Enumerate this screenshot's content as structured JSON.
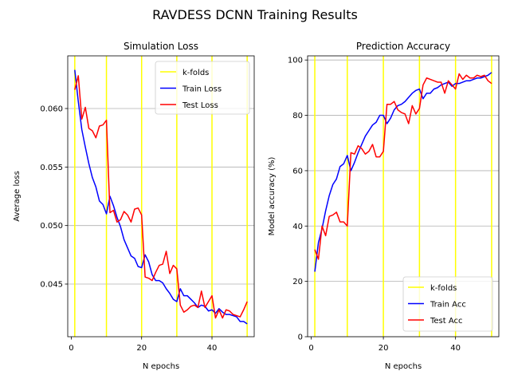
{
  "figure": {
    "suptitle": "RAVDESS DCNN Training Results"
  },
  "chart_data": [
    {
      "type": "line",
      "title": "Simulation Loss",
      "xlabel": "N epochs",
      "ylabel": "Average loss",
      "xlim": [
        -1,
        52
      ],
      "ylim": [
        0.0405,
        0.0645
      ],
      "xticks": [
        0,
        20,
        40
      ],
      "yticks": [
        0.045,
        0.05,
        0.055,
        0.06
      ],
      "ytick_labels": [
        "0.045",
        "0.050",
        "0.055",
        "0.060"
      ],
      "grid": "y",
      "legend_position": "top-right",
      "kfolds": {
        "name": "k-folds",
        "color": "#ffff00",
        "x": [
          1,
          10,
          20,
          30,
          40,
          50
        ]
      },
      "series": [
        {
          "name": "Train Loss",
          "color": "#0000ff",
          "x": [
            1,
            2,
            3,
            4,
            5,
            6,
            7,
            8,
            9,
            10,
            11,
            12,
            13,
            14,
            15,
            16,
            17,
            18,
            19,
            20,
            21,
            22,
            23,
            24,
            25,
            26,
            27,
            28,
            29,
            30,
            31,
            32,
            33,
            34,
            35,
            36,
            37,
            38,
            39,
            40,
            41,
            42,
            43,
            44,
            45,
            46,
            47,
            48,
            49,
            50
          ],
          "values": [
            0.0633,
            0.0606,
            0.0582,
            0.0567,
            0.0553,
            0.0541,
            0.0533,
            0.0521,
            0.0518,
            0.051,
            0.0525,
            0.0517,
            0.0507,
            0.0499,
            0.0488,
            0.0481,
            0.0474,
            0.0472,
            0.0465,
            0.0464,
            0.0475,
            0.0469,
            0.0458,
            0.0453,
            0.0453,
            0.0451,
            0.0446,
            0.0442,
            0.0437,
            0.0435,
            0.0446,
            0.044,
            0.044,
            0.0437,
            0.0434,
            0.043,
            0.0432,
            0.0431,
            0.0427,
            0.0428,
            0.0425,
            0.0429,
            0.0426,
            0.0424,
            0.0424,
            0.0423,
            0.0422,
            0.0418,
            0.0418,
            0.0416
          ]
        },
        {
          "name": "Test Loss",
          "color": "#ff0000",
          "x": [
            1,
            2,
            3,
            4,
            5,
            6,
            7,
            8,
            9,
            10,
            11,
            12,
            13,
            14,
            15,
            16,
            17,
            18,
            19,
            20,
            21,
            22,
            23,
            24,
            25,
            26,
            27,
            28,
            29,
            30,
            31,
            32,
            33,
            34,
            35,
            36,
            37,
            38,
            39,
            40,
            41,
            42,
            43,
            44,
            45,
            46,
            47,
            48,
            49,
            50
          ],
          "values": [
            0.0616,
            0.0628,
            0.0591,
            0.0601,
            0.0583,
            0.0581,
            0.0575,
            0.0585,
            0.0586,
            0.059,
            0.0511,
            0.0513,
            0.0503,
            0.0505,
            0.0512,
            0.0509,
            0.0503,
            0.0514,
            0.0515,
            0.0509,
            0.0456,
            0.0455,
            0.0453,
            0.046,
            0.0466,
            0.0467,
            0.0478,
            0.0459,
            0.0466,
            0.0463,
            0.0432,
            0.0426,
            0.0428,
            0.0431,
            0.0432,
            0.043,
            0.0444,
            0.043,
            0.0435,
            0.044,
            0.0421,
            0.0428,
            0.0421,
            0.0428,
            0.0427,
            0.0424,
            0.0423,
            0.0422,
            0.0428,
            0.0435
          ]
        }
      ]
    },
    {
      "type": "line",
      "title": "Prediction Accuracy",
      "xlabel": "N epochs",
      "ylabel": "Model accuracy (%)",
      "xlim": [
        -1,
        52
      ],
      "ylim": [
        0,
        101.5
      ],
      "xticks": [
        0,
        20,
        40
      ],
      "yticks": [
        0,
        20,
        40,
        60,
        80,
        100
      ],
      "ytick_labels": [
        "0",
        "20",
        "40",
        "60",
        "80",
        "100"
      ],
      "grid": "y",
      "legend_position": "bottom-right",
      "kfolds": {
        "name": "k-folds",
        "color": "#ffff00",
        "x": [
          1,
          10,
          20,
          30,
          40,
          50
        ]
      },
      "series": [
        {
          "name": "Train Acc",
          "color": "#0000ff",
          "x": [
            1,
            2,
            3,
            4,
            5,
            6,
            7,
            8,
            9,
            10,
            11,
            12,
            13,
            14,
            15,
            16,
            17,
            18,
            19,
            20,
            21,
            22,
            23,
            24,
            25,
            26,
            27,
            28,
            29,
            30,
            31,
            32,
            33,
            34,
            35,
            36,
            37,
            38,
            39,
            40,
            41,
            42,
            43,
            44,
            45,
            46,
            47,
            48,
            49,
            50
          ],
          "values": [
            23.5,
            34,
            39,
            45.5,
            51,
            55,
            57,
            61.5,
            62.5,
            65.5,
            60,
            63,
            66.5,
            69.5,
            72.5,
            74.5,
            76.5,
            77.5,
            80,
            80,
            77,
            79,
            82,
            83.5,
            84,
            85,
            86.5,
            88,
            89,
            89.5,
            86,
            88,
            88,
            89.5,
            90,
            91,
            91.5,
            92,
            90.5,
            91.5,
            91.5,
            92,
            92.5,
            92.5,
            93,
            93.5,
            93.5,
            94,
            94.5,
            95.5
          ]
        },
        {
          "name": "Test Acc",
          "color": "#ff0000",
          "x": [
            1,
            2,
            3,
            4,
            5,
            6,
            7,
            8,
            9,
            10,
            11,
            12,
            13,
            14,
            15,
            16,
            17,
            18,
            19,
            20,
            21,
            22,
            23,
            24,
            25,
            26,
            27,
            28,
            29,
            30,
            31,
            32,
            33,
            34,
            35,
            36,
            37,
            38,
            39,
            40,
            41,
            42,
            43,
            44,
            45,
            46,
            47,
            48,
            49,
            50
          ],
          "values": [
            31.5,
            28,
            40,
            36.5,
            43.5,
            44,
            45,
            41.5,
            41.5,
            40,
            66.5,
            66,
            69,
            68,
            66,
            67,
            69.5,
            65,
            65,
            67,
            84,
            84,
            85,
            82,
            81,
            80.5,
            77,
            83.5,
            80.5,
            82.5,
            91,
            93.5,
            93,
            92.5,
            92,
            92,
            88,
            92.5,
            91,
            89.5,
            95,
            93,
            94.5,
            93.5,
            93.5,
            94.5,
            94,
            94.5,
            92.5,
            91.5
          ]
        }
      ]
    }
  ]
}
